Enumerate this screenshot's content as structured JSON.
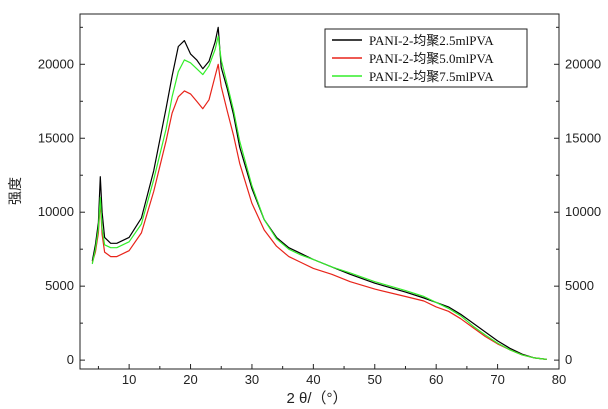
{
  "chart_data": {
    "type": "line",
    "xlabel": "2 θ/（°）",
    "ylabel": "强度",
    "xlim": [
      2,
      80
    ],
    "ylim": [
      -600,
      23400
    ],
    "x_ticks": [
      10,
      20,
      30,
      40,
      50,
      60,
      70,
      80
    ],
    "y_ticks": [
      0,
      5000,
      10000,
      15000,
      20000
    ],
    "grid": false,
    "legend_position": "top-right",
    "series": [
      {
        "name": "PANI-2-均聚2.5mlPVA",
        "color": "#000000",
        "x": [
          4,
          4.5,
          5,
          5.3,
          5.6,
          6,
          7,
          8,
          10,
          12,
          14,
          16,
          17,
          18,
          19,
          20,
          21,
          22,
          23,
          24,
          24.5,
          25,
          26,
          27,
          28,
          30,
          32,
          34,
          36,
          38,
          40,
          43,
          46,
          50,
          55,
          58,
          60,
          62,
          64,
          66,
          68,
          70,
          72,
          74,
          76,
          78
        ],
        "y": [
          6700,
          7800,
          9300,
          12400,
          10000,
          8300,
          7900,
          7900,
          8300,
          9600,
          12800,
          17000,
          19200,
          21200,
          21600,
          20700,
          20300,
          19700,
          20200,
          21500,
          22500,
          19800,
          18300,
          16600,
          14400,
          11600,
          9500,
          8300,
          7600,
          7200,
          6800,
          6300,
          5800,
          5200,
          4600,
          4200,
          3900,
          3600,
          3100,
          2500,
          1900,
          1300,
          800,
          400,
          150,
          50
        ]
      },
      {
        "name": "PANI-2-均聚5.0mlPVA",
        "color": "#e8241a",
        "x": [
          4,
          4.5,
          5,
          5.3,
          5.6,
          6,
          7,
          8,
          10,
          12,
          14,
          16,
          17,
          18,
          19,
          20,
          21,
          22,
          23,
          24,
          24.5,
          25,
          26,
          27,
          28,
          30,
          32,
          34,
          36,
          38,
          40,
          43,
          46,
          50,
          55,
          58,
          60,
          62,
          64,
          66,
          68,
          70,
          72,
          74,
          76,
          78
        ],
        "y": [
          6600,
          7300,
          8600,
          10800,
          8500,
          7300,
          7000,
          7000,
          7400,
          8600,
          11400,
          14800,
          16700,
          17800,
          18200,
          18000,
          17500,
          17000,
          17600,
          19200,
          20000,
          18500,
          16800,
          15200,
          13300,
          10600,
          8800,
          7700,
          7000,
          6600,
          6200,
          5800,
          5300,
          4800,
          4300,
          4000,
          3600,
          3300,
          2800,
          2200,
          1600,
          1100,
          700,
          350,
          150,
          50
        ]
      },
      {
        "name": "PANI-2-均聚7.5mlPVA",
        "color": "#33ee2a",
        "x": [
          4,
          4.5,
          5,
          5.3,
          5.6,
          6,
          7,
          8,
          10,
          12,
          14,
          16,
          17,
          18,
          19,
          20,
          21,
          22,
          23,
          24,
          24.5,
          25,
          26,
          27,
          28,
          30,
          32,
          34,
          36,
          38,
          40,
          43,
          46,
          50,
          55,
          58,
          60,
          62,
          64,
          66,
          68,
          70,
          72,
          74,
          76,
          78
        ],
        "y": [
          6500,
          7500,
          8900,
          11000,
          8900,
          7800,
          7600,
          7600,
          8000,
          9200,
          12200,
          15600,
          17800,
          19500,
          20300,
          20100,
          19700,
          19300,
          19900,
          21000,
          21900,
          20300,
          18600,
          16900,
          14800,
          11800,
          9500,
          8200,
          7500,
          7100,
          6800,
          6300,
          5900,
          5300,
          4700,
          4300,
          3900,
          3500,
          3000,
          2300,
          1700,
          1150,
          700,
          350,
          150,
          50
        ]
      }
    ]
  }
}
